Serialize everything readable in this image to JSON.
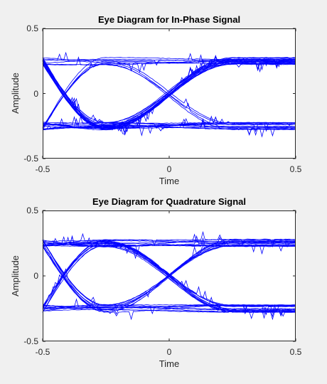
{
  "colors": {
    "figure_background": "#f0f0f0",
    "axes_background": "#ffffff",
    "axes_line": "#262626",
    "trace": "#0000ff"
  },
  "chart_data": [
    {
      "type": "line",
      "variant": "eye-diagram",
      "title": "Eye Diagram for In-Phase Signal",
      "xlabel": "Time",
      "ylabel": "Amplitude",
      "xlim": [
        -0.5,
        0.5
      ],
      "ylim": [
        -0.5,
        0.5
      ],
      "xticks": [
        -0.5,
        0,
        0.5
      ],
      "xtick_labels": [
        "-0.5",
        "0",
        "0.5"
      ],
      "yticks": [
        -0.5,
        0,
        0.5
      ],
      "ytick_labels": [
        "-0.5",
        "0",
        "0.5"
      ],
      "grid": false,
      "trace_color": "#0000ff",
      "trace_count": 40,
      "symbol_levels": [
        -0.25,
        0.25
      ],
      "max_excursion": 0.45,
      "crossing_times": [
        -0.25,
        0.25
      ]
    },
    {
      "type": "line",
      "variant": "eye-diagram",
      "title": "Eye Diagram for Quadrature Signal",
      "xlabel": "Time",
      "ylabel": "Amplitude",
      "xlim": [
        -0.5,
        0.5
      ],
      "ylim": [
        -0.5,
        0.5
      ],
      "xticks": [
        -0.5,
        0,
        0.5
      ],
      "xtick_labels": [
        "-0.5",
        "0",
        "0.5"
      ],
      "yticks": [
        -0.5,
        0,
        0.5
      ],
      "ytick_labels": [
        "-0.5",
        "0",
        "0.5"
      ],
      "grid": false,
      "trace_color": "#0000ff",
      "trace_count": 40,
      "symbol_levels": [
        -0.25,
        0.25
      ],
      "max_excursion": 0.45,
      "crossing_times": [
        -0.25,
        0.25
      ]
    }
  ]
}
